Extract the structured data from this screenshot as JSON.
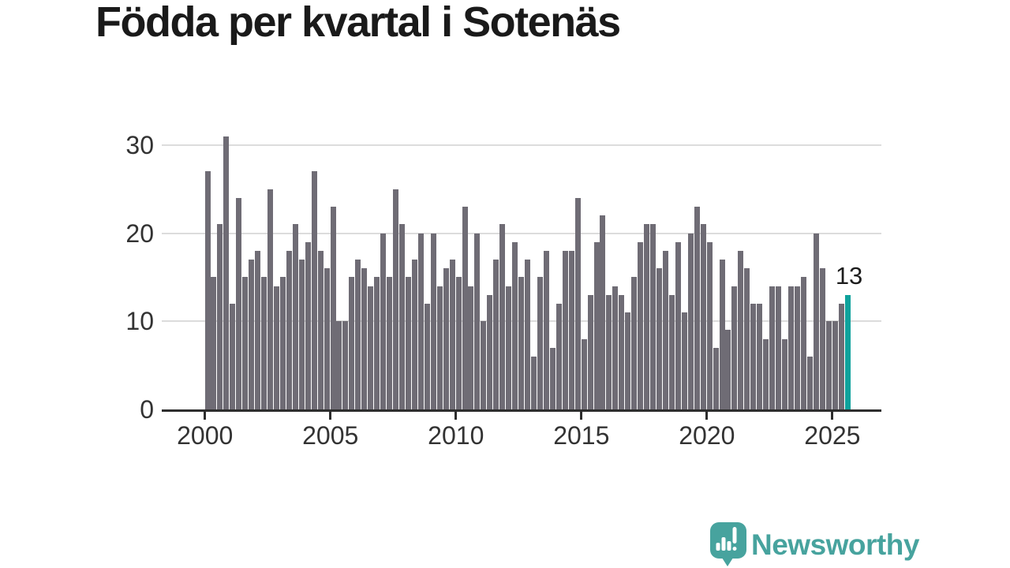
{
  "title": "Födda per kvartal i Sotenäs",
  "footer": {
    "brand": "Newsworthy"
  },
  "colors": {
    "bar": "#6f6c75",
    "highlight": "#0ea29c",
    "logo_teal": "#47a39e",
    "axis": "#2d2d2d",
    "grid": "#dcdcdc",
    "tick_label": "#333333",
    "title_text": "#1a1a1a",
    "annotation_text": "#1c1c1c",
    "background": "#ffffff"
  },
  "chart_data": {
    "type": "bar",
    "title": "Födda per kvartal i Sotenäs",
    "xlabel": "",
    "ylabel": "",
    "x_unit": "quarter",
    "start": "2000-Q1",
    "end": "2025-Q3",
    "ylim": [
      0,
      32
    ],
    "grid": true,
    "y_ticks": [
      0,
      10,
      20,
      30
    ],
    "x_ticks": [
      {
        "label": "2000",
        "index": 0
      },
      {
        "label": "2005",
        "index": 20
      },
      {
        "label": "2010",
        "index": 40
      },
      {
        "label": "2015",
        "index": 60
      },
      {
        "label": "2020",
        "index": 80
      },
      {
        "label": "2025",
        "index": 100
      }
    ],
    "values": [
      27,
      15,
      21,
      31,
      12,
      24,
      15,
      17,
      18,
      15,
      25,
      14,
      15,
      18,
      21,
      17,
      19,
      27,
      18,
      16,
      23,
      10,
      10,
      15,
      17,
      16,
      14,
      15,
      20,
      15,
      25,
      21,
      15,
      17,
      20,
      12,
      20,
      14,
      16,
      17,
      15,
      23,
      14,
      20,
      10,
      13,
      17,
      21,
      14,
      19,
      15,
      17,
      6,
      15,
      18,
      7,
      12,
      18,
      18,
      24,
      8,
      13,
      19,
      22,
      13,
      14,
      13,
      11,
      15,
      19,
      21,
      21,
      16,
      18,
      13,
      19,
      11,
      20,
      23,
      21,
      19,
      7,
      17,
      9,
      14,
      18,
      16,
      12,
      12,
      8,
      14,
      14,
      8,
      14,
      14,
      15,
      6,
      20,
      16,
      10,
      10,
      12,
      13
    ],
    "highlight_index": 102,
    "annotation": {
      "text": "13",
      "value": 13,
      "target": "2025-Q3"
    }
  }
}
